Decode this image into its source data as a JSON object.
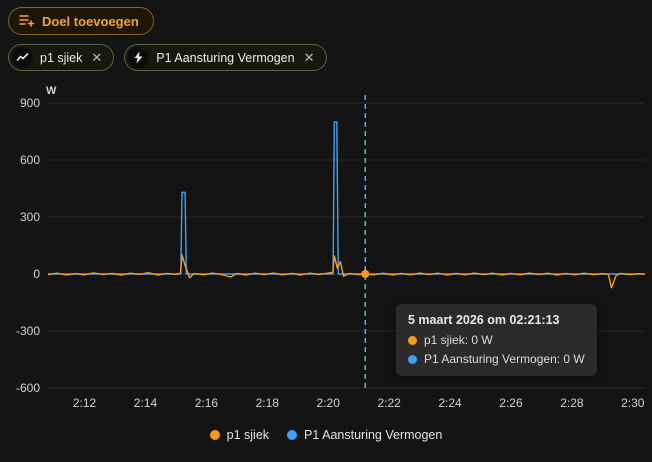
{
  "toolbar": {
    "add_goal_label": "Doel toevoegen"
  },
  "chips": [
    {
      "label": "p1 sjiek",
      "icon": "line-chart-icon",
      "close": "✕"
    },
    {
      "label": "P1 Aansturing Vermogen",
      "icon": "lightning-bolt-icon",
      "close": "✕"
    }
  ],
  "colors": {
    "background": "#141414",
    "accent_orange": "#f2a33c",
    "series_orange": "#f59c20",
    "series_blue": "#40a0f5",
    "cursor_line": "#59b3de",
    "grid": "#2a2a2a",
    "tick_text": "#d2d2d2",
    "tooltip_bg": "#2b2b2b",
    "chip_border": "#5d6246"
  },
  "tooltip": {
    "title": "5 maart 2026 om 02:21:13",
    "rows": [
      {
        "text": "p1 sjiek: 0 W",
        "color": "#f59c20"
      },
      {
        "text": "P1 Aansturing Vermogen: 0 W",
        "color": "#40a0f5"
      }
    ]
  },
  "legend": [
    {
      "label": "p1 sjiek",
      "color": "#f59c20"
    },
    {
      "label": "P1 Aansturing Vermogen",
      "color": "#40a0f5"
    }
  ],
  "chart_data": {
    "type": "line",
    "title": "",
    "xlabel": "",
    "ylabel": "W",
    "grid": "horizontal-only",
    "legend_position": "bottom",
    "x_domain_minutes": [
      130.8,
      150.4
    ],
    "ylim": [
      -600,
      900
    ],
    "yticks": [
      900,
      600,
      300,
      0,
      -300,
      -600
    ],
    "xticks": [
      "2:12",
      "2:14",
      "2:16",
      "2:18",
      "2:20",
      "2:22",
      "2:24",
      "2:26",
      "2:28",
      "2:30"
    ],
    "cursor": {
      "t_minutes": 141.2167,
      "datetime_label": "5 maart 2026 om 02:21:13",
      "values": {
        "p1 sjiek": "0 W",
        "P1 Aansturing Vermogen": "0 W"
      }
    },
    "series": [
      {
        "name": "p1 sjiek",
        "color": "#f59c20",
        "points": [
          [
            130.8,
            -3
          ],
          [
            131.1,
            4
          ],
          [
            131.4,
            -5
          ],
          [
            131.7,
            2
          ],
          [
            132.0,
            -4
          ],
          [
            132.3,
            6
          ],
          [
            132.6,
            -3
          ],
          [
            132.9,
            3
          ],
          [
            133.2,
            -6
          ],
          [
            133.5,
            4
          ],
          [
            133.8,
            -2
          ],
          [
            134.1,
            7
          ],
          [
            134.4,
            -5
          ],
          [
            134.7,
            3
          ],
          [
            135.0,
            -2
          ],
          [
            135.15,
            4
          ],
          [
            135.2,
            100
          ],
          [
            135.3,
            45
          ],
          [
            135.45,
            -20
          ],
          [
            135.6,
            3
          ],
          [
            135.9,
            -4
          ],
          [
            136.2,
            5
          ],
          [
            136.5,
            -3
          ],
          [
            136.8,
            -16
          ],
          [
            137.0,
            3
          ],
          [
            137.3,
            -5
          ],
          [
            137.6,
            4
          ],
          [
            137.9,
            -3
          ],
          [
            138.2,
            5
          ],
          [
            138.5,
            -4
          ],
          [
            138.8,
            3
          ],
          [
            139.1,
            -5
          ],
          [
            139.4,
            4
          ],
          [
            139.7,
            -3
          ],
          [
            140.0,
            5
          ],
          [
            140.15,
            8
          ],
          [
            140.2,
            95
          ],
          [
            140.3,
            30
          ],
          [
            140.4,
            65
          ],
          [
            140.5,
            -12
          ],
          [
            140.7,
            3
          ],
          [
            141.0,
            -3
          ],
          [
            141.2167,
            0
          ],
          [
            141.5,
            -4
          ],
          [
            141.8,
            4
          ],
          [
            142.1,
            -5
          ],
          [
            142.4,
            3
          ],
          [
            142.7,
            -4
          ],
          [
            143.0,
            5
          ],
          [
            143.3,
            -3
          ],
          [
            143.6,
            4
          ],
          [
            143.9,
            -5
          ],
          [
            144.2,
            3
          ],
          [
            144.5,
            -4
          ],
          [
            144.8,
            5
          ],
          [
            145.1,
            -3
          ],
          [
            145.4,
            4
          ],
          [
            145.7,
            -5
          ],
          [
            146.0,
            3
          ],
          [
            146.3,
            -4
          ],
          [
            146.6,
            5
          ],
          [
            146.9,
            -3
          ],
          [
            147.2,
            4
          ],
          [
            147.5,
            -5
          ],
          [
            147.8,
            3
          ],
          [
            148.1,
            -4
          ],
          [
            148.4,
            4
          ],
          [
            148.7,
            -3
          ],
          [
            149.0,
            2
          ],
          [
            149.2,
            -2
          ],
          [
            149.3,
            -72
          ],
          [
            149.45,
            -8
          ],
          [
            149.6,
            3
          ],
          [
            149.9,
            -3
          ],
          [
            150.2,
            2
          ],
          [
            150.4,
            -2
          ]
        ]
      },
      {
        "name": "P1 Aansturing Vermogen",
        "color": "#40a0f5",
        "points": [
          [
            130.8,
            0
          ],
          [
            135.16,
            0
          ],
          [
            135.2,
            430
          ],
          [
            135.3,
            430
          ],
          [
            135.34,
            0
          ],
          [
            140.16,
            0
          ],
          [
            140.2,
            800
          ],
          [
            140.28,
            800
          ],
          [
            140.33,
            0
          ],
          [
            150.4,
            0
          ]
        ]
      }
    ]
  }
}
